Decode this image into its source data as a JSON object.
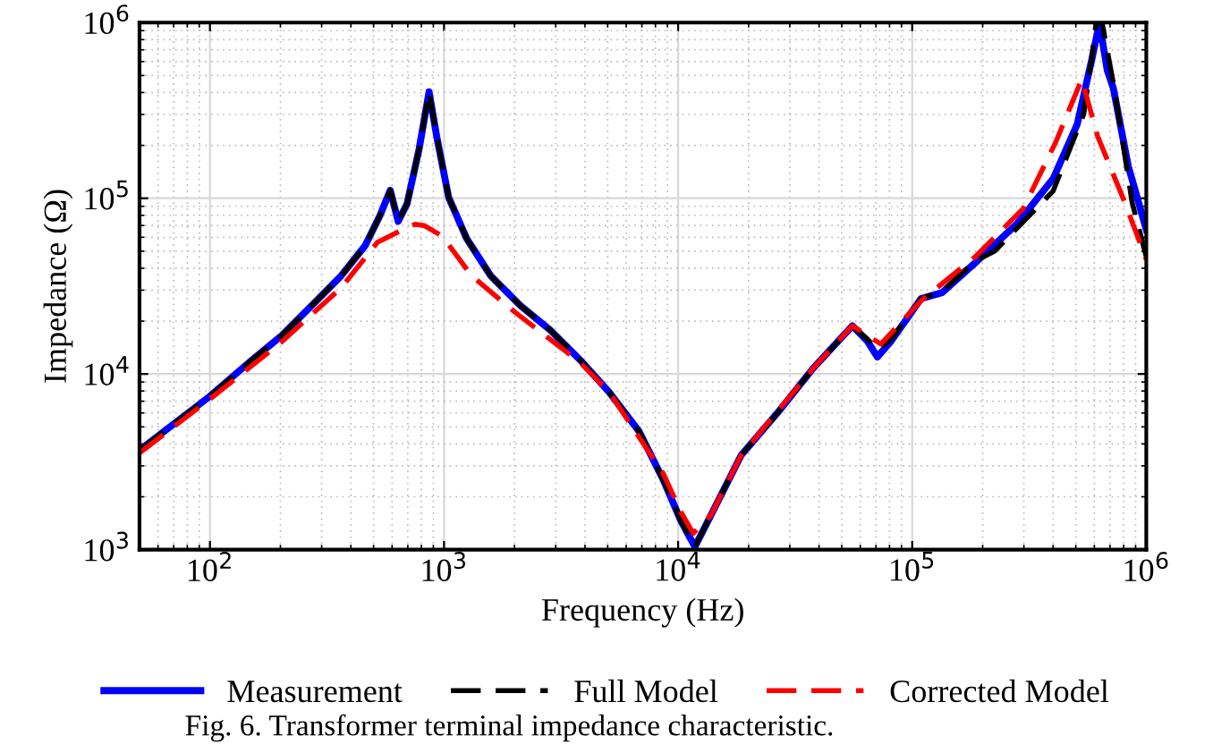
{
  "chart_data": {
    "type": "line",
    "xlabel": "Frequency (Hz)",
    "ylabel": "Impedance (Ω)",
    "log": "xy",
    "grid": true,
    "legend": "bottom",
    "marker": "none",
    "xlim": [
      50,
      1000000
    ],
    "ylim": [
      1000,
      1000000
    ],
    "xticks": [
      {
        "value": 100,
        "label": "10$^{2}$"
      },
      {
        "value": 1000,
        "label": "10$^{3}$"
      },
      {
        "value": 10000,
        "label": "10$^{4}$"
      },
      {
        "value": 100000,
        "label": "10$^{5}$"
      },
      {
        "value": 1000000,
        "label": "10$^{6}$"
      }
    ],
    "yticks": [
      {
        "value": 1000,
        "label": "10$^{3}$"
      },
      {
        "value": 10000,
        "label": "10$^{4}$"
      },
      {
        "value": 100000,
        "label": "10$^{5}$"
      },
      {
        "value": 1000000,
        "label": "10$^{6}$"
      }
    ],
    "annotations": [
      "Fig. 6. Transformer terminal impedance characteristic."
    ],
    "series": [
      {
        "name": "Measurement",
        "color": "#0000ff",
        "line_style": "solid",
        "x": [
          50,
          100,
          151,
          202,
          272,
          364,
          460,
          533,
          589,
          637,
          695,
          782,
          863,
          931,
          1047,
          1250,
          1580,
          2120,
          2840,
          3820,
          5070,
          6800,
          8630,
          10300,
          11800,
          13800,
          18600,
          26500,
          37800,
          55500,
          64300,
          71000,
          81300,
          109000,
          134000,
          186000,
          281000,
          401000,
          507000,
          587000,
          631000,
          681000,
          723000,
          838000,
          1000000
        ],
        "values": [
          3680,
          7480,
          12000,
          16500,
          24500,
          36300,
          53700,
          80000,
          111000,
          74000,
          93000,
          190000,
          404000,
          224000,
          101000,
          58900,
          36300,
          24500,
          17800,
          12000,
          7890,
          4730,
          2510,
          1450,
          1040,
          1570,
          3450,
          5980,
          10800,
          18800,
          15400,
          12500,
          15400,
          26800,
          29000,
          43000,
          71800,
          130000,
          264000,
          629000,
          1000000,
          536000,
          424000,
          152000,
          66400
        ]
      },
      {
        "name": "Full Model",
        "color": "#000000",
        "line_style": "dashed",
        "x": [
          50,
          100,
          151,
          202,
          272,
          364,
          460,
          533,
          589,
          637,
          695,
          782,
          863,
          931,
          1047,
          1250,
          1580,
          2120,
          2840,
          3820,
          5070,
          6800,
          8630,
          10300,
          11800,
          13800,
          18600,
          26500,
          37800,
          55500,
          64300,
          71000,
          81300,
          109000,
          134000,
          186000,
          225000,
          400000,
          540000,
          580000,
          611000,
          647000,
          730000,
          870000,
          1000000
        ],
        "values": [
          3680,
          7480,
          12000,
          16500,
          24500,
          36300,
          53700,
          80000,
          111000,
          74000,
          93000,
          190000,
          404000,
          224000,
          101000,
          58900,
          36300,
          24500,
          17800,
          12000,
          7890,
          4730,
          2510,
          1450,
          1040,
          1570,
          3450,
          5980,
          10800,
          18800,
          15800,
          13700,
          15800,
          26800,
          29500,
          44000,
          50000,
          110000,
          300000,
          581000,
          1000000,
          1000000,
          424000,
          94600,
          46500
        ]
      },
      {
        "name": "Corrected Model",
        "color": "#ff0000",
        "line_style": "dashed",
        "x": [
          50,
          100,
          202,
          364,
          519,
          695,
          752,
          822,
          985,
          1310,
          2000,
          3820,
          5070,
          8630,
          10300,
          11600,
          13800,
          18600,
          37800,
          55500,
          73500,
          109000,
          186000,
          298000,
          410000,
          530000,
          620000,
          810000,
          1000000
        ],
        "values": [
          3550,
          7200,
          15200,
          31000,
          56100,
          68300,
          71100,
          70000,
          60700,
          36300,
          22600,
          11600,
          7890,
          2720,
          1630,
          1240,
          1570,
          3450,
          10800,
          18800,
          14800,
          26100,
          46500,
          87500,
          208000,
          476000,
          225000,
          94600,
          44800
        ]
      }
    ]
  }
}
